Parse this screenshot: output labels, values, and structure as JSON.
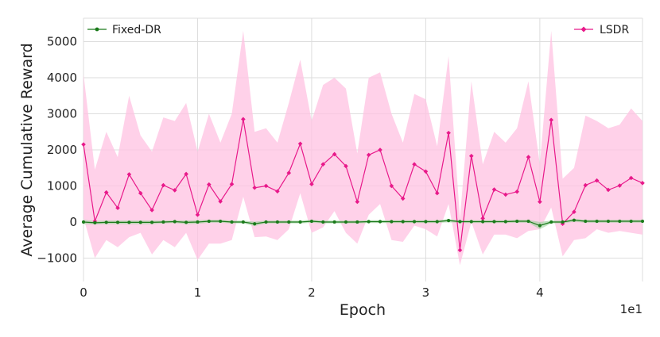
{
  "chart_data": {
    "type": "line",
    "xlabel": "Epoch",
    "ylabel": "Average Cumulative Reward",
    "x_scale_label": "1e1",
    "xlim": [
      0,
      4.9
    ],
    "ylim": [
      -1650,
      5650
    ],
    "xticks": [
      0,
      1,
      2,
      3,
      4
    ],
    "yticks": [
      -1000,
      0,
      1000,
      2000,
      3000,
      4000,
      5000
    ],
    "grid": true,
    "x": [
      0.0,
      0.1,
      0.2,
      0.3,
      0.4,
      0.5,
      0.6,
      0.7,
      0.8,
      0.9,
      1.0,
      1.1,
      1.2,
      1.3,
      1.4,
      1.5,
      1.6,
      1.7,
      1.8,
      1.9,
      2.0,
      2.1,
      2.2,
      2.3,
      2.4,
      2.5,
      2.6,
      2.7,
      2.8,
      2.9,
      3.0,
      3.1,
      3.2,
      3.3,
      3.4,
      3.5,
      3.6,
      3.7,
      3.8,
      3.9,
      4.0,
      4.1,
      4.2,
      4.3,
      4.4,
      4.5,
      4.6,
      4.7,
      4.8,
      4.9
    ],
    "series": [
      {
        "name": "Fixed-DR",
        "color": "#1a7a1a",
        "band_color": "#9fd39f",
        "values": [
          0,
          -20,
          -10,
          -10,
          -10,
          -10,
          -10,
          0,
          10,
          -10,
          0,
          20,
          20,
          0,
          0,
          -50,
          0,
          0,
          0,
          0,
          20,
          0,
          0,
          0,
          0,
          10,
          10,
          10,
          10,
          10,
          10,
          10,
          40,
          10,
          10,
          10,
          10,
          10,
          20,
          20,
          -100,
          0,
          0,
          50,
          20,
          20,
          20,
          20,
          20,
          20
        ],
        "lower": [
          -60,
          -70,
          -60,
          -60,
          -60,
          -60,
          -60,
          -40,
          -30,
          -60,
          -50,
          -20,
          -20,
          -40,
          -40,
          -110,
          -40,
          -40,
          -40,
          -40,
          -20,
          -40,
          -40,
          -40,
          -40,
          -30,
          -30,
          -30,
          -30,
          -30,
          -30,
          -30,
          0,
          -30,
          -30,
          -30,
          -30,
          -30,
          -20,
          -20,
          -200,
          -40,
          -40,
          10,
          -20,
          -20,
          -20,
          -20,
          -20,
          -20
        ],
        "upper": [
          60,
          30,
          40,
          40,
          40,
          40,
          40,
          40,
          50,
          40,
          50,
          60,
          60,
          40,
          40,
          10,
          40,
          40,
          40,
          40,
          60,
          40,
          40,
          40,
          40,
          50,
          50,
          50,
          50,
          50,
          50,
          50,
          80,
          50,
          50,
          50,
          50,
          50,
          60,
          60,
          0,
          40,
          40,
          90,
          60,
          60,
          60,
          60,
          60,
          60
        ]
      },
      {
        "name": "LSDR",
        "color": "#e8198a",
        "band_color": "#ffc2e2",
        "values": [
          2150,
          20,
          820,
          390,
          1320,
          800,
          330,
          1020,
          880,
          1330,
          200,
          1040,
          570,
          1050,
          2850,
          950,
          1000,
          850,
          1360,
          2170,
          1050,
          1600,
          1880,
          1550,
          560,
          1860,
          2000,
          1000,
          650,
          1600,
          1400,
          800,
          2470,
          -780,
          1830,
          100,
          900,
          760,
          840,
          1800,
          560,
          2830,
          -50,
          280,
          1020,
          1150,
          890,
          1010,
          1220,
          1080
        ],
        "lower": [
          120,
          -1000,
          -500,
          -700,
          -420,
          -300,
          -900,
          -500,
          -700,
          -300,
          -1050,
          -600,
          -600,
          -500,
          700,
          -420,
          -400,
          -500,
          -200,
          800,
          -300,
          -150,
          300,
          -300,
          -600,
          200,
          500,
          -500,
          -550,
          -100,
          -200,
          -400,
          500,
          -1200,
          0,
          -900,
          -350,
          -350,
          -450,
          -250,
          -200,
          400,
          -950,
          -500,
          -450,
          -200,
          -300,
          -250,
          -300,
          -350
        ],
        "upper": [
          4100,
          1450,
          2500,
          1800,
          3500,
          2400,
          1950,
          2900,
          2800,
          3300,
          1950,
          3000,
          2200,
          3000,
          5300,
          2500,
          2600,
          2200,
          3300,
          4500,
          2800,
          3800,
          4000,
          3700,
          1900,
          4000,
          4150,
          3000,
          2200,
          3550,
          3400,
          2100,
          4600,
          100,
          3900,
          1600,
          2500,
          2200,
          2600,
          3900,
          1600,
          5300,
          1200,
          1500,
          2950,
          2800,
          2600,
          2700,
          3150,
          2800
        ]
      }
    ],
    "legend": [
      {
        "label": "Fixed-DR",
        "position": "top-left"
      },
      {
        "label": "LSDR",
        "position": "top-right"
      }
    ]
  }
}
